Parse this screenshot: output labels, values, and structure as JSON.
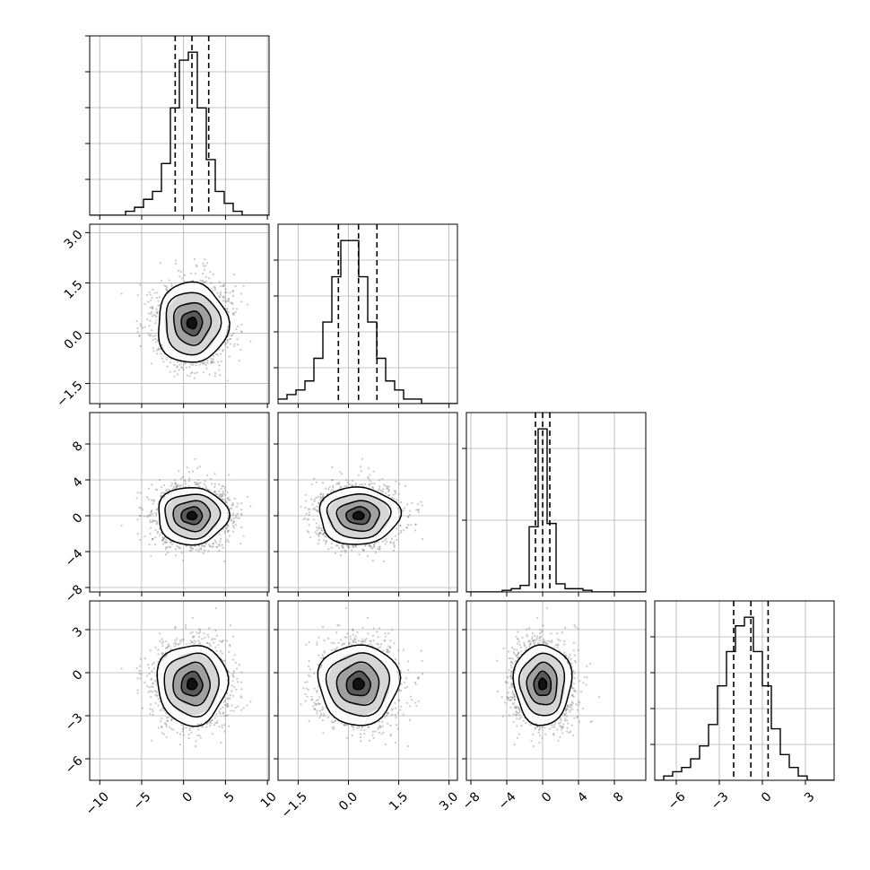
{
  "chart_data": {
    "type": "corner",
    "n_params": 4,
    "grid": true,
    "line_color": "#000000",
    "scatter_color": "#888888",
    "params": [
      {
        "range": [
          -11.2,
          10.2
        ],
        "ticks": [
          -10,
          -5,
          0,
          5,
          10
        ],
        "tick_labels": [
          "−10",
          "−5",
          "0",
          "5",
          "10"
        ],
        "quantiles": [
          -1.0,
          1.0,
          3.0
        ],
        "hist": {
          "start": -11.2,
          "width": 1.07,
          "counts": [
            0,
            0,
            0,
            0,
            1,
            2,
            4,
            6,
            13,
            27,
            39,
            41,
            27,
            14,
            6,
            3,
            1,
            0,
            0,
            0
          ]
        },
        "hist_ticks": [
          0.2,
          0.4,
          0.6,
          0.8,
          1.0
        ]
      },
      {
        "range": [
          -2.1,
          3.25
        ],
        "ticks": [
          -1.5,
          0.0,
          1.5,
          3.0
        ],
        "tick_labels": [
          "−1.5",
          "0.0",
          "1.5",
          "3.0"
        ],
        "quantiles": [
          -0.3,
          0.3,
          0.85
        ],
        "hist": {
          "start": -2.1,
          "width": 0.2675,
          "counts": [
            1,
            2,
            3,
            5,
            10,
            18,
            28,
            36,
            36,
            28,
            18,
            10,
            5,
            3,
            1,
            1,
            0,
            0,
            0,
            0
          ]
        },
        "hist_ticks": [
          0.2,
          0.4,
          0.6,
          0.8
        ]
      },
      {
        "range": [
          -8.5,
          11.5
        ],
        "ticks": [
          -8,
          -4,
          0,
          4,
          8
        ],
        "tick_labels": [
          "−8",
          "−4",
          "0",
          "4",
          "8"
        ],
        "quantiles": [
          -0.8,
          0.0,
          0.8
        ],
        "hist": {
          "start": -8.5,
          "width": 1.0,
          "counts": [
            0,
            0,
            0,
            0,
            1,
            2,
            4,
            40,
            100,
            42,
            5,
            2,
            2,
            1,
            0,
            0,
            0,
            0,
            0,
            0
          ]
        },
        "hist_ticks": [
          0.4,
          0.8
        ]
      },
      {
        "range": [
          -7.5,
          5.0
        ],
        "ticks": [
          -6,
          -3,
          0,
          3
        ],
        "tick_labels": [
          "−6",
          "−3",
          "0",
          "3"
        ],
        "quantiles": [
          -2.0,
          -0.8,
          0.4
        ],
        "hist": {
          "start": -7.5,
          "width": 0.625,
          "counts": [
            0,
            1,
            2,
            3,
            5,
            8,
            13,
            22,
            30,
            36,
            38,
            30,
            22,
            12,
            6,
            3,
            1,
            0,
            0,
            0
          ]
        },
        "hist_ticks": [
          0.2,
          0.4,
          0.6,
          0.8
        ]
      }
    ],
    "scatter_scale": [
      2.1,
      0.6,
      1.6,
      1.4
    ]
  }
}
